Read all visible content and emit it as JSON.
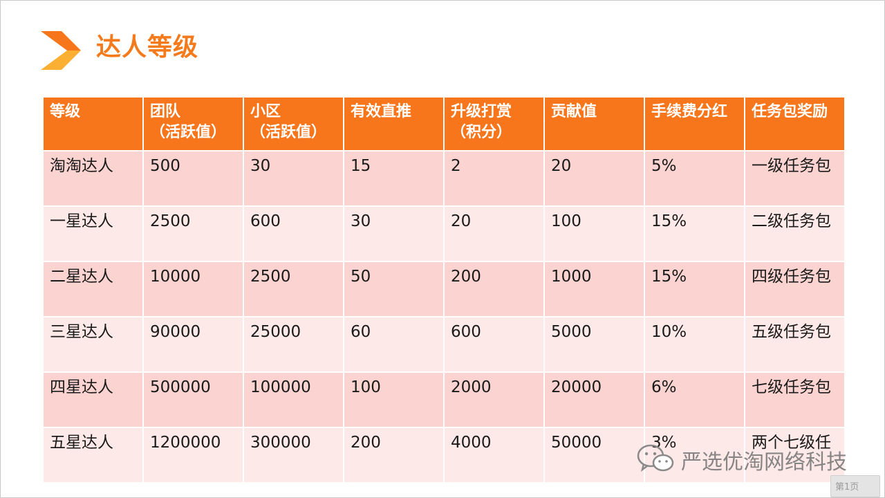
{
  "slide": {
    "title": "达人等级"
  },
  "table": {
    "headers": [
      [
        "等级",
        ""
      ],
      [
        "团队",
        "（活跃值）"
      ],
      [
        "小区",
        "（活跃值）"
      ],
      [
        "有效直推",
        ""
      ],
      [
        "升级打赏",
        "（积分）"
      ],
      [
        "贡献值",
        ""
      ],
      [
        "手续费分红",
        ""
      ],
      [
        "任务包奖励",
        ""
      ]
    ],
    "rows": [
      [
        "淘淘达人",
        "500",
        "30",
        "15",
        "2",
        "20",
        "5%",
        "一级任务包"
      ],
      [
        "一星达人",
        "2500",
        "600",
        "30",
        "20",
        "100",
        "15%",
        "二级任务包"
      ],
      [
        "二星达人",
        "10000",
        "2500",
        "50",
        "200",
        "1000",
        "15%",
        "四级任务包"
      ],
      [
        "三星达人",
        "90000",
        "25000",
        "60",
        "600",
        "5000",
        "10%",
        "五级任务包"
      ],
      [
        "四星达人",
        "500000",
        "100000",
        "100",
        "2000",
        "20000",
        "6%",
        "七级任务包"
      ],
      [
        "五星达人",
        "1200000",
        "300000",
        "200",
        "4000",
        "50000",
        "3%",
        "两个七级任"
      ]
    ]
  },
  "watermark": {
    "text": "严选优淘网络科技",
    "icon": "wechat-icon"
  },
  "page_badge": {
    "text": "第1页"
  },
  "colors": {
    "accent": "#f7751b",
    "row_odd": "#fbd3d0",
    "row_even": "#fde9e7"
  }
}
